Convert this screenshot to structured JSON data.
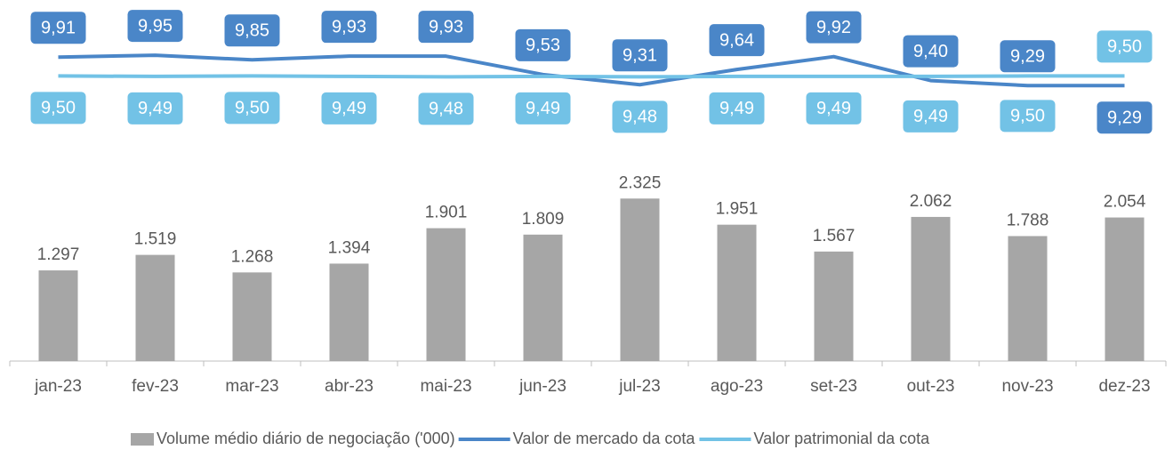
{
  "chart_data": {
    "type": "combo",
    "categories": [
      "jan-23",
      "fev-23",
      "mar-23",
      "abr-23",
      "mai-23",
      "jun-23",
      "jul-23",
      "ago-23",
      "set-23",
      "out-23",
      "nov-23",
      "dez-23"
    ],
    "ylim": [
      0,
      5000
    ],
    "y2lim": [
      3.3,
      10.9
    ],
    "series": [
      {
        "name": "Volume médio diário de negociação ('000)",
        "type": "bar",
        "color": "#a6a6a6",
        "values": [
          1297,
          1519,
          1268,
          1394,
          1901,
          1809,
          2325,
          1951,
          1567,
          2062,
          1788,
          2054
        ],
        "value_labels": [
          "1.297",
          "1.519",
          "1.268",
          "1.394",
          "1.901",
          "1.809",
          "2.325",
          "1.951",
          "1.567",
          "2.062",
          "1.788",
          "2.054"
        ]
      },
      {
        "name": "Valor de mercado da cota",
        "type": "line",
        "axis": "y2",
        "color": "#4a86c8",
        "values": [
          9.91,
          9.95,
          9.85,
          9.93,
          9.93,
          9.53,
          9.31,
          9.64,
          9.92,
          9.4,
          9.29,
          9.29
        ],
        "value_labels": [
          "9,91",
          "9,95",
          "9,85",
          "9,93",
          "9,93",
          "9,53",
          "9,31",
          "9,64",
          "9,92",
          "9,40",
          "9,29",
          "9,29"
        ]
      },
      {
        "name": "Valor patrimonial da cota",
        "type": "line",
        "axis": "y2",
        "color": "#72c2e6",
        "values": [
          9.5,
          9.49,
          9.5,
          9.49,
          9.48,
          9.49,
          9.48,
          9.49,
          9.49,
          9.49,
          9.5,
          9.5
        ],
        "value_labels": [
          "9,50",
          "9,49",
          "9,50",
          "9,49",
          "9,48",
          "9,49",
          "9,48",
          "9,49",
          "9,49",
          "9,49",
          "9,50",
          "9,50"
        ]
      }
    ]
  }
}
